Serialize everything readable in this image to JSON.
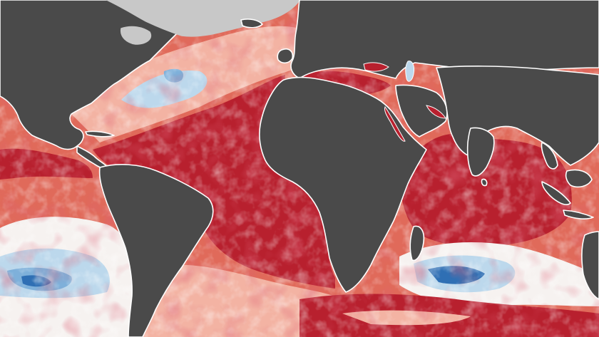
{
  "map": {
    "kind": "sea-surface-temperature-anomaly",
    "palette": {
      "land": "#4a4a4a",
      "ice": "#c8c8c8",
      "coastline": "#ffffff",
      "warm_strong": "#b8202e",
      "warm_mid": "#e06a5a",
      "warm_light": "#f3b3a3",
      "neutral": "#f6f2f0",
      "cool_light": "#bcd8ec",
      "cool_mid": "#7eb0da",
      "cool_strong": "#2f6fb4"
    }
  }
}
